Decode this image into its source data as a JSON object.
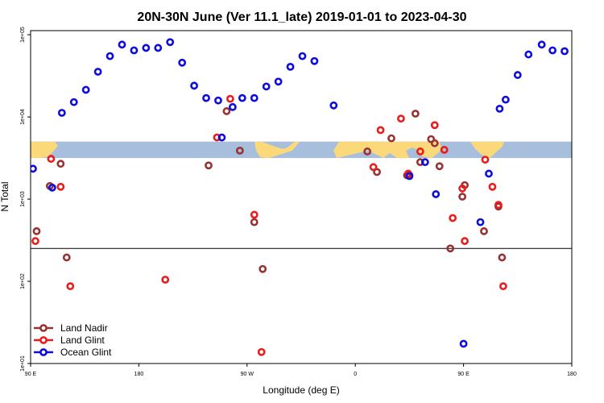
{
  "chart_data": {
    "type": "scatter",
    "title": "20N-30N June (Ver 11.1_late)   2019-01-01 to 2023-04-30",
    "xlabel": "Longitude (deg E)",
    "ylabel": "N Total",
    "xlim": [
      90,
      540
    ],
    "ylim_log10": [
      1,
      5.05
    ],
    "y_scale": "log",
    "x_ticks": [
      {
        "value": 90,
        "label": "90 E"
      },
      {
        "value": 180,
        "label": "180"
      },
      {
        "value": 270,
        "label": "90 W"
      },
      {
        "value": 360,
        "label": "0"
      },
      {
        "value": 450,
        "label": "90 E"
      },
      {
        "value": 540,
        "label": "180"
      }
    ],
    "y_ticks": [
      {
        "value": 1,
        "label": "1e+01"
      },
      {
        "value": 2,
        "label": "1e+02"
      },
      {
        "value": 3,
        "label": "1e+03"
      },
      {
        "value": 4,
        "label": "1e+04"
      },
      {
        "value": 5,
        "label": "1e+05"
      }
    ],
    "reference_line_log10": 2.4,
    "map_strip_log10": [
      3.5,
      3.7
    ],
    "map_colors": {
      "ocean": "#a7bedd",
      "land": "#fbd87a"
    },
    "legend": {
      "placement": "bottom-left"
    },
    "series": [
      {
        "name": "Land Nadir",
        "color": "#983333",
        "x": [
          95,
          106,
          115,
          120,
          238,
          253,
          264,
          276,
          283,
          370,
          378,
          390,
          403,
          410,
          414,
          423,
          426,
          430,
          439,
          449,
          451,
          467,
          479,
          482
        ],
        "y_log10": [
          2.61,
          3.16,
          3.43,
          2.29,
          3.41,
          4.07,
          3.59,
          2.72,
          2.15,
          3.58,
          3.33,
          3.74,
          3.29,
          4.04,
          3.45,
          3.73,
          3.68,
          3.4,
          2.4,
          3.03,
          3.17,
          2.61,
          2.91,
          2.29
        ]
      },
      {
        "name": "Land Glint",
        "color": "#ea1c1c",
        "x": [
          94,
          107,
          115,
          123,
          202,
          245,
          256,
          276,
          282,
          375,
          381,
          398,
          404,
          405,
          414,
          426,
          434,
          441,
          449,
          451,
          468,
          474,
          479,
          483
        ],
        "y_log10": [
          2.49,
          3.49,
          3.15,
          1.94,
          2.02,
          3.75,
          4.22,
          2.81,
          1.14,
          3.39,
          3.84,
          3.98,
          3.31,
          3.29,
          3.58,
          3.9,
          3.6,
          2.77,
          3.13,
          2.49,
          3.48,
          3.15,
          2.93,
          1.94
        ]
      },
      {
        "name": "Ocean Glint",
        "color": "#0d0dde",
        "x": [
          92,
          108,
          116,
          126,
          136,
          146,
          156,
          166,
          176,
          186,
          196,
          206,
          216,
          226,
          236,
          246,
          249,
          258,
          266,
          276,
          286,
          296,
          306,
          316,
          326,
          342,
          405,
          418,
          427,
          450,
          464,
          471,
          480,
          485,
          495,
          504,
          515,
          524,
          534,
          543
        ],
        "y_log10": [
          3.37,
          3.14,
          4.05,
          4.18,
          4.33,
          4.55,
          4.74,
          4.88,
          4.81,
          4.84,
          4.84,
          4.91,
          4.66,
          4.38,
          4.23,
          4.2,
          3.75,
          4.12,
          4.23,
          4.23,
          4.37,
          4.43,
          4.61,
          4.74,
          4.68,
          4.14,
          3.28,
          3.45,
          3.06,
          1.24,
          2.72,
          3.31,
          4.1,
          4.21,
          4.51,
          4.76,
          4.88,
          4.81,
          4.8,
          4.8
        ]
      }
    ]
  }
}
